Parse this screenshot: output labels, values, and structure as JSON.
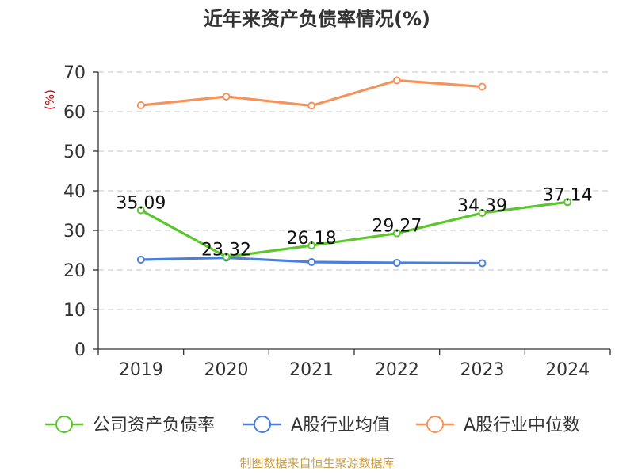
{
  "chart_data": {
    "type": "line",
    "title": "近年来资产负债率情况(%)",
    "ylabel": "(%)",
    "xlabel": "",
    "categories": [
      "2019",
      "2020",
      "2021",
      "2022",
      "2023",
      "2024"
    ],
    "ylim": [
      0,
      70
    ],
    "yticks": [
      0,
      10,
      20,
      30,
      40,
      50,
      60,
      70
    ],
    "grid": true,
    "legend_position": "bottom",
    "series": [
      {
        "name": "公司资产负债率",
        "color": "#5cc72c",
        "values": [
          35.09,
          23.32,
          26.18,
          29.27,
          34.39,
          37.14
        ],
        "labels": [
          "35.09",
          "23.32",
          "26.18",
          "29.27",
          "34.39",
          "37.14"
        ]
      },
      {
        "name": "A股行业均值",
        "color": "#4a7fdc",
        "values": [
          22.6,
          23.1,
          22.0,
          21.8,
          21.7,
          null
        ]
      },
      {
        "name": "A股行业中位数",
        "color": "#f5935b",
        "values": [
          61.6,
          63.8,
          61.5,
          67.9,
          66.3,
          null
        ]
      }
    ]
  },
  "footer": {
    "source": "制图数据来自恒生聚源数据库"
  }
}
